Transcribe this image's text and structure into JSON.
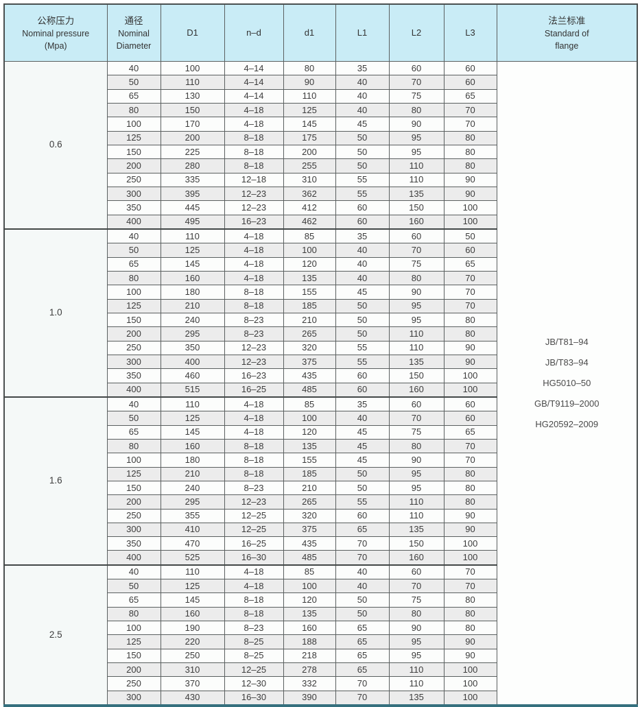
{
  "table": {
    "header": {
      "pressure": {
        "zh": "公称压力",
        "en": "Nominal pressure",
        "unit": "(Mpa)"
      },
      "diameter": {
        "zh": "通径",
        "en_line1": "Nominal",
        "en_line2": "Diameter"
      },
      "columns": [
        "D1",
        "n–d",
        "d1",
        "L1",
        "L2",
        "L3"
      ],
      "standard": {
        "zh": "法兰标准",
        "en_line1": "Standard of",
        "en_line2": "flange"
      }
    },
    "colors": {
      "header_bg": "#c9ecf6",
      "row_bg": "#fcfdfc",
      "row_alt_bg": "#ececec",
      "pressure_col_bg": "#f5f9f8",
      "grid_line": "#5a5f5f",
      "outer_bottom_border": "#35707e",
      "text": "#3c3c3c"
    },
    "groups": [
      {
        "pressure": "0.6",
        "rows": [
          [
            "40",
            "100",
            "4–14",
            "80",
            "35",
            "60",
            "60"
          ],
          [
            "50",
            "110",
            "4–14",
            "90",
            "40",
            "70",
            "60"
          ],
          [
            "65",
            "130",
            "4–14",
            "110",
            "40",
            "75",
            "65"
          ],
          [
            "80",
            "150",
            "4–18",
            "125",
            "40",
            "80",
            "70"
          ],
          [
            "100",
            "170",
            "4–18",
            "145",
            "45",
            "90",
            "70"
          ],
          [
            "125",
            "200",
            "8–18",
            "175",
            "50",
            "95",
            "80"
          ],
          [
            "150",
            "225",
            "8–18",
            "200",
            "50",
            "95",
            "80"
          ],
          [
            "200",
            "280",
            "8–18",
            "255",
            "50",
            "110",
            "80"
          ],
          [
            "250",
            "335",
            "12–18",
            "310",
            "55",
            "110",
            "90"
          ],
          [
            "300",
            "395",
            "12–23",
            "362",
            "55",
            "135",
            "90"
          ],
          [
            "350",
            "445",
            "12–23",
            "412",
            "60",
            "150",
            "100"
          ],
          [
            "400",
            "495",
            "16–23",
            "462",
            "60",
            "160",
            "100"
          ]
        ]
      },
      {
        "pressure": "1.0",
        "rows": [
          [
            "40",
            "110",
            "4–18",
            "85",
            "35",
            "60",
            "50"
          ],
          [
            "50",
            "125",
            "4–18",
            "100",
            "40",
            "70",
            "60"
          ],
          [
            "65",
            "145",
            "4–18",
            "120",
            "40",
            "75",
            "65"
          ],
          [
            "80",
            "160",
            "4–18",
            "135",
            "40",
            "80",
            "70"
          ],
          [
            "100",
            "180",
            "8–18",
            "155",
            "45",
            "90",
            "70"
          ],
          [
            "125",
            "210",
            "8–18",
            "185",
            "50",
            "95",
            "70"
          ],
          [
            "150",
            "240",
            "8–23",
            "210",
            "50",
            "95",
            "80"
          ],
          [
            "200",
            "295",
            "8–23",
            "265",
            "50",
            "110",
            "80"
          ],
          [
            "250",
            "350",
            "12–23",
            "320",
            "55",
            "110",
            "90"
          ],
          [
            "300",
            "400",
            "12–23",
            "375",
            "55",
            "135",
            "90"
          ],
          [
            "350",
            "460",
            "16–23",
            "435",
            "60",
            "150",
            "100"
          ],
          [
            "400",
            "515",
            "16–25",
            "485",
            "60",
            "160",
            "100"
          ]
        ]
      },
      {
        "pressure": "1.6",
        "rows": [
          [
            "40",
            "110",
            "4–18",
            "85",
            "35",
            "60",
            "60"
          ],
          [
            "50",
            "125",
            "4–18",
            "100",
            "40",
            "70",
            "60"
          ],
          [
            "65",
            "145",
            "4–18",
            "120",
            "45",
            "75",
            "65"
          ],
          [
            "80",
            "160",
            "8–18",
            "135",
            "45",
            "80",
            "70"
          ],
          [
            "100",
            "180",
            "8–18",
            "155",
            "45",
            "90",
            "70"
          ],
          [
            "125",
            "210",
            "8–18",
            "185",
            "50",
            "95",
            "80"
          ],
          [
            "150",
            "240",
            "8–23",
            "210",
            "50",
            "95",
            "80"
          ],
          [
            "200",
            "295",
            "12–23",
            "265",
            "55",
            "110",
            "80"
          ],
          [
            "250",
            "355",
            "12–25",
            "320",
            "60",
            "110",
            "90"
          ],
          [
            "300",
            "410",
            "12–25",
            "375",
            "65",
            "135",
            "90"
          ],
          [
            "350",
            "470",
            "16–25",
            "435",
            "70",
            "150",
            "100"
          ],
          [
            "400",
            "525",
            "16–30",
            "485",
            "70",
            "160",
            "100"
          ]
        ]
      },
      {
        "pressure": "2.5",
        "rows": [
          [
            "40",
            "110",
            "4–18",
            "85",
            "40",
            "60",
            "70"
          ],
          [
            "50",
            "125",
            "4–18",
            "100",
            "40",
            "70",
            "70"
          ],
          [
            "65",
            "145",
            "8–18",
            "120",
            "50",
            "75",
            "80"
          ],
          [
            "80",
            "160",
            "8–18",
            "135",
            "50",
            "80",
            "80"
          ],
          [
            "100",
            "190",
            "8–23",
            "160",
            "65",
            "90",
            "80"
          ],
          [
            "125",
            "220",
            "8–25",
            "188",
            "65",
            "95",
            "90"
          ],
          [
            "150",
            "250",
            "8–25",
            "218",
            "65",
            "95",
            "90"
          ],
          [
            "200",
            "310",
            "12–25",
            "278",
            "65",
            "110",
            "100"
          ],
          [
            "250",
            "370",
            "12–30",
            "332",
            "70",
            "110",
            "100"
          ],
          [
            "300",
            "430",
            "16–30",
            "390",
            "70",
            "135",
            "100"
          ]
        ]
      }
    ],
    "standards": [
      "JB/T81–94",
      "JB/T83–94",
      "HG5010–50",
      "GB/T9119–2000",
      "HG20592–2009"
    ]
  }
}
